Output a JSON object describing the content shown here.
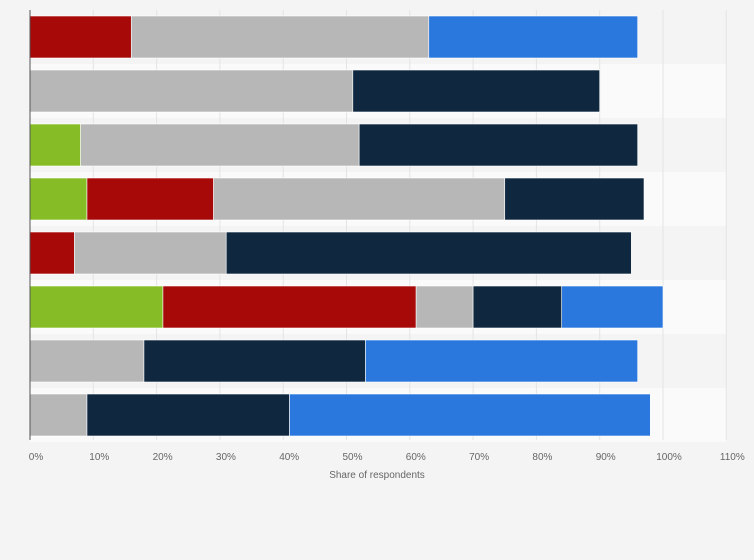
{
  "chart_data": {
    "type": "bar",
    "orientation": "horizontal",
    "stacked": true,
    "title": "",
    "xlabel": "Share of respondents",
    "ylabel": "",
    "xlim": [
      0,
      110
    ],
    "xticks": [
      "0%",
      "10%",
      "20%",
      "30%",
      "40%",
      "50%",
      "60%",
      "70%",
      "80%",
      "90%",
      "100%",
      "110%"
    ],
    "grid": true,
    "legend": "none",
    "categories": [
      "",
      "",
      "",
      "",
      "",
      "",
      "",
      ""
    ],
    "series": [
      {
        "name": "green",
        "color": "#86bc25",
        "values": [
          0,
          0,
          8,
          9,
          0,
          21,
          0,
          0
        ]
      },
      {
        "name": "red",
        "color": "#a70808",
        "values": [
          16,
          0,
          0,
          20,
          7,
          40,
          0,
          0
        ]
      },
      {
        "name": "gray",
        "color": "#b7b7b7",
        "values": [
          47,
          51,
          44,
          46,
          24,
          9,
          18,
          9
        ]
      },
      {
        "name": "navy",
        "color": "#0f2840",
        "values": [
          0,
          39,
          44,
          22,
          64,
          14,
          35,
          32
        ]
      },
      {
        "name": "blue",
        "color": "#2a78de",
        "values": [
          33,
          0,
          0,
          0,
          0,
          16,
          43,
          57
        ]
      }
    ]
  }
}
